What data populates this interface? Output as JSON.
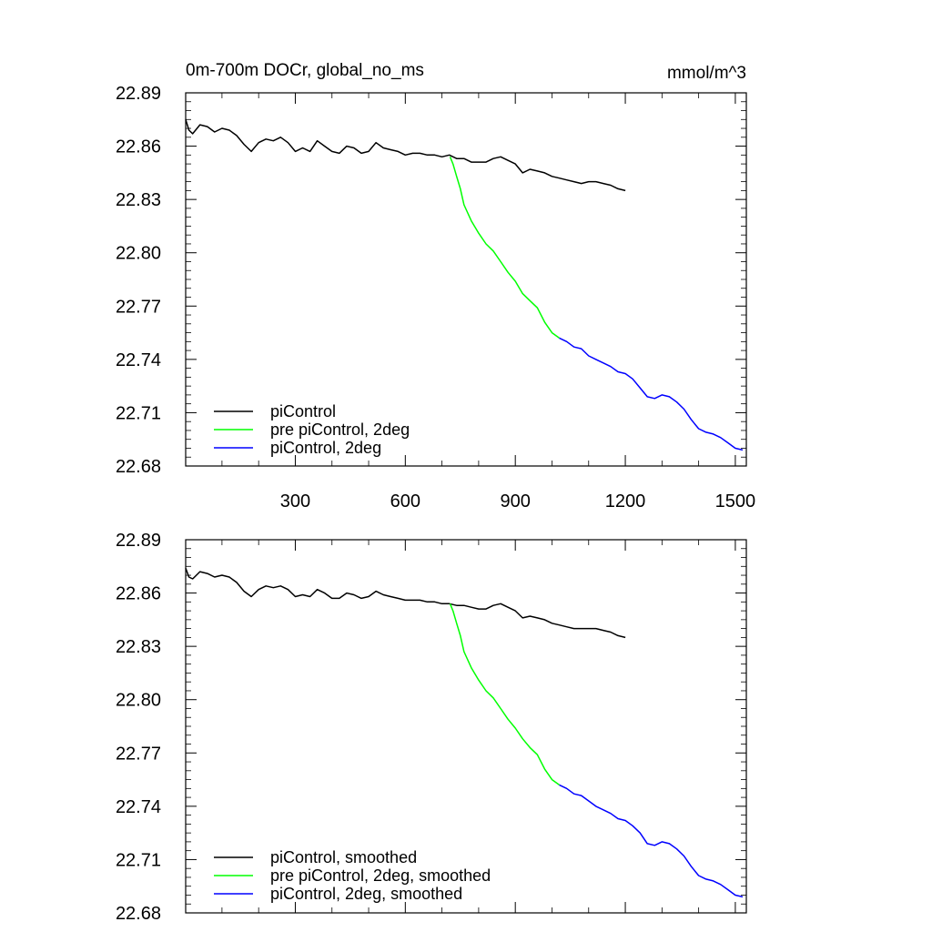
{
  "chart_data": [
    {
      "type": "line",
      "title": "0m-700m DOCr, global_no_ms",
      "units": "mmol/m^3",
      "xlim": [
        1,
        1530
      ],
      "ylim": [
        22.68,
        22.89
      ],
      "yticks": [
        "22.89",
        "22.86",
        "22.83",
        "22.80",
        "22.77",
        "22.74",
        "22.71",
        "22.68"
      ],
      "xticks": [
        "300",
        "600",
        "900",
        "1200",
        "1500"
      ],
      "show_xtick_labels": true,
      "legend_position": "bottom-left",
      "series": [
        {
          "name": "piControl",
          "color": "#000000",
          "x": [
            1,
            10,
            20,
            40,
            60,
            80,
            100,
            120,
            140,
            160,
            180,
            200,
            220,
            240,
            260,
            280,
            300,
            320,
            340,
            360,
            380,
            400,
            420,
            440,
            460,
            480,
            500,
            520,
            540,
            560,
            580,
            600,
            620,
            640,
            660,
            680,
            700,
            720,
            740,
            760,
            780,
            800,
            820,
            840,
            860,
            880,
            900,
            920,
            940,
            960,
            980,
            1000,
            1020,
            1040,
            1060,
            1080,
            1100,
            1120,
            1140,
            1160,
            1180,
            1200
          ],
          "y": [
            22.875,
            22.869,
            22.867,
            22.872,
            22.871,
            22.868,
            22.87,
            22.869,
            22.866,
            22.861,
            22.857,
            22.862,
            22.864,
            22.863,
            22.865,
            22.862,
            22.857,
            22.859,
            22.857,
            22.863,
            22.86,
            22.857,
            22.856,
            22.86,
            22.859,
            22.856,
            22.857,
            22.862,
            22.859,
            22.858,
            22.857,
            22.855,
            22.856,
            22.856,
            22.855,
            22.855,
            22.854,
            22.855,
            22.853,
            22.853,
            22.851,
            22.851,
            22.851,
            22.853,
            22.854,
            22.852,
            22.85,
            22.845,
            22.847,
            22.846,
            22.845,
            22.843,
            22.842,
            22.841,
            22.84,
            22.839,
            22.84,
            22.84,
            22.839,
            22.838,
            22.836,
            22.835
          ]
        },
        {
          "name": "pre piControl, 2deg",
          "color": "#00ff00",
          "x": [
            722,
            730,
            740,
            750,
            760,
            780,
            800,
            820,
            840,
            860,
            880,
            900,
            920,
            940,
            960,
            980,
            1000,
            1020
          ],
          "y": [
            22.854,
            22.85,
            22.843,
            22.836,
            22.827,
            22.818,
            22.811,
            22.805,
            22.801,
            22.795,
            22.789,
            22.784,
            22.777,
            22.773,
            22.769,
            22.761,
            22.755,
            22.752
          ]
        },
        {
          "name": "piControl, 2deg",
          "color": "#0000ff",
          "x": [
            1020,
            1040,
            1060,
            1080,
            1100,
            1120,
            1140,
            1160,
            1180,
            1200,
            1220,
            1240,
            1260,
            1280,
            1300,
            1320,
            1340,
            1360,
            1380,
            1400,
            1420,
            1440,
            1460,
            1480,
            1500,
            1520
          ],
          "y": [
            22.752,
            22.75,
            22.747,
            22.746,
            22.742,
            22.74,
            22.738,
            22.736,
            22.733,
            22.732,
            22.729,
            22.724,
            22.719,
            22.718,
            22.72,
            22.719,
            22.716,
            22.712,
            22.706,
            22.701,
            22.699,
            22.698,
            22.696,
            22.693,
            22.69,
            22.689
          ]
        }
      ]
    },
    {
      "type": "line",
      "title": "",
      "xlim": [
        1,
        1530
      ],
      "ylim": [
        22.68,
        22.89
      ],
      "yticks": [
        "22.89",
        "22.86",
        "22.83",
        "22.80",
        "22.77",
        "22.74",
        "22.71",
        "22.68"
      ],
      "xticks": [
        "300",
        "600",
        "900",
        "1200",
        "1500"
      ],
      "show_xtick_labels": false,
      "legend_position": "bottom-left",
      "series": [
        {
          "name": "piControl, smoothed",
          "color": "#000000",
          "x": [
            1,
            10,
            20,
            40,
            60,
            80,
            100,
            120,
            140,
            160,
            180,
            200,
            220,
            240,
            260,
            280,
            300,
            320,
            340,
            360,
            380,
            400,
            420,
            440,
            460,
            480,
            500,
            520,
            540,
            560,
            580,
            600,
            620,
            640,
            660,
            680,
            700,
            720,
            740,
            760,
            780,
            800,
            820,
            840,
            860,
            880,
            900,
            920,
            940,
            960,
            980,
            1000,
            1020,
            1040,
            1060,
            1080,
            1100,
            1120,
            1140,
            1160,
            1180,
            1200
          ],
          "y": [
            22.874,
            22.869,
            22.868,
            22.872,
            22.871,
            22.869,
            22.87,
            22.869,
            22.866,
            22.861,
            22.858,
            22.862,
            22.864,
            22.863,
            22.864,
            22.862,
            22.858,
            22.859,
            22.858,
            22.862,
            22.86,
            22.857,
            22.857,
            22.86,
            22.859,
            22.857,
            22.858,
            22.861,
            22.859,
            22.858,
            22.857,
            22.856,
            22.856,
            22.856,
            22.855,
            22.855,
            22.854,
            22.854,
            22.853,
            22.853,
            22.852,
            22.851,
            22.851,
            22.853,
            22.854,
            22.852,
            22.85,
            22.846,
            22.847,
            22.846,
            22.845,
            22.843,
            22.842,
            22.841,
            22.84,
            22.84,
            22.84,
            22.84,
            22.839,
            22.838,
            22.836,
            22.835
          ]
        },
        {
          "name": "pre piControl, 2deg, smoothed",
          "color": "#00ff00",
          "x": [
            722,
            730,
            740,
            750,
            760,
            780,
            800,
            820,
            840,
            860,
            880,
            900,
            920,
            940,
            960,
            980,
            1000,
            1020
          ],
          "y": [
            22.854,
            22.85,
            22.843,
            22.836,
            22.827,
            22.818,
            22.811,
            22.805,
            22.801,
            22.795,
            22.789,
            22.784,
            22.778,
            22.773,
            22.769,
            22.761,
            22.755,
            22.752
          ]
        },
        {
          "name": "piControl, 2deg, smoothed",
          "color": "#0000ff",
          "x": [
            1020,
            1040,
            1060,
            1080,
            1100,
            1120,
            1140,
            1160,
            1180,
            1200,
            1220,
            1240,
            1260,
            1280,
            1300,
            1320,
            1340,
            1360,
            1380,
            1400,
            1420,
            1440,
            1460,
            1480,
            1500,
            1520
          ],
          "y": [
            22.752,
            22.75,
            22.747,
            22.746,
            22.743,
            22.74,
            22.738,
            22.736,
            22.733,
            22.732,
            22.729,
            22.725,
            22.719,
            22.718,
            22.72,
            22.719,
            22.716,
            22.712,
            22.706,
            22.701,
            22.699,
            22.698,
            22.696,
            22.693,
            22.69,
            22.689
          ]
        }
      ]
    }
  ]
}
